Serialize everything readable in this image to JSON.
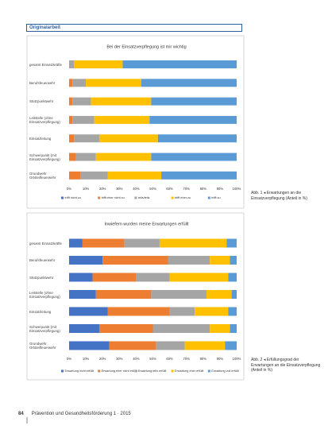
{
  "header": "Originalarbeit",
  "footer": {
    "page": "84",
    "journal": "Prävention und Gesundheitsförderung 1 · 2015"
  },
  "chart_data": [
    {
      "type": "stacked-bar-horizontal",
      "title": "Bei der Einsatzverpflegung ist mir wichtig",
      "caption": "Abb. 1 ◂ Erwartungen an die Einsatzverpflegung (Anteil in %)",
      "categories": [
        "gesamt Einsatzkräfte",
        "Berufsfeuerwehr",
        "Stützpunktwehr",
        "Leitstelle (ohne Einsatzverpflegung)",
        "Einsatzleitung",
        "Schwerpunkt (mit Einsatzverpflegung)",
        "Grundwehr Ortsteilfeuerwehr"
      ],
      "series": [
        {
          "name": "trifft nicht zu",
          "color": "#4472c4",
          "values": [
            0,
            0,
            0,
            0,
            0,
            0,
            0
          ]
        },
        {
          "name": "trifft eher nicht zu",
          "color": "#ed7d31",
          "values": [
            0,
            2,
            2,
            2,
            3,
            4,
            7
          ]
        },
        {
          "name": "teils/teils",
          "color": "#a5a5a5",
          "values": [
            3,
            8,
            11,
            13,
            15,
            12,
            16
          ]
        },
        {
          "name": "trifft eher zu",
          "color": "#ffc000",
          "values": [
            29,
            33,
            36,
            33,
            35,
            33,
            32
          ]
        },
        {
          "name": "trifft zu",
          "color": "#5b9bd5",
          "values": [
            68,
            57,
            51,
            52,
            47,
            51,
            45
          ]
        }
      ],
      "xlim": [
        0,
        100
      ],
      "xticks": [
        {
          "value": 0,
          "label": "0%"
        },
        {
          "value": 10,
          "label": "10%"
        },
        {
          "value": 20,
          "label": "20%"
        },
        {
          "value": 30,
          "label": "30%"
        },
        {
          "value": 40,
          "label": "40%"
        },
        {
          "value": 50,
          "label": "50%"
        },
        {
          "value": 60,
          "label": "60%"
        },
        {
          "value": 70,
          "label": "70%"
        },
        {
          "value": 80,
          "label": "80%"
        },
        {
          "value": 90,
          "label": "90%"
        },
        {
          "value": 100,
          "label": "100%"
        }
      ]
    },
    {
      "type": "stacked-bar-horizontal",
      "title": "Inwiefern wurden meine Erwartungen erfüllt",
      "caption": "Abb. 2 ◂ Erfüllungsgrad der Erwartungen an die Einsatzverpflegung (Anteil in %)",
      "categories": [
        "gesamt Einsatzkräfte",
        "Berufsfeuerwehr",
        "Stützpunktwehr",
        "Leitstelle (ohne Einsatzverpflegung)",
        "Einsatzleitung",
        "Schwerpunkt (mit Einsatzverpflegung)",
        "Grundwehr Ortsteilfeuerwehr"
      ],
      "series": [
        {
          "name": "Erwartung nicht erfüllt",
          "color": "#4472c4",
          "values": [
            8,
            20,
            14,
            16,
            23,
            18,
            24
          ]
        },
        {
          "name": "Erwartung eher nicht erfüllt",
          "color": "#ed7d31",
          "values": [
            25,
            39,
            26,
            33,
            37,
            32,
            28
          ]
        },
        {
          "name": "Erwartung teils erfüllt",
          "color": "#a5a5a5",
          "values": [
            21,
            25,
            20,
            33,
            15,
            34,
            17
          ]
        },
        {
          "name": "Erwartung eher erfüllt",
          "color": "#ffc000",
          "values": [
            40,
            12,
            35,
            15,
            20,
            12,
            24
          ]
        },
        {
          "name": "Erwartung voll erfüllt",
          "color": "#5b9bd5",
          "values": [
            6,
            4,
            5,
            3,
            5,
            4,
            7
          ]
        }
      ],
      "xlim": [
        0,
        100
      ],
      "xticks": [
        {
          "value": 0,
          "label": "0%"
        },
        {
          "value": 10,
          "label": "10%"
        },
        {
          "value": 20,
          "label": "20%"
        },
        {
          "value": 30,
          "label": "30%"
        },
        {
          "value": 40,
          "label": "40%"
        },
        {
          "value": 50,
          "label": "50%"
        },
        {
          "value": 60,
          "label": "60%"
        },
        {
          "value": 70,
          "label": "70%"
        },
        {
          "value": 80,
          "label": "80%"
        },
        {
          "value": 90,
          "label": "90%"
        },
        {
          "value": 100,
          "label": "100%"
        }
      ]
    }
  ]
}
